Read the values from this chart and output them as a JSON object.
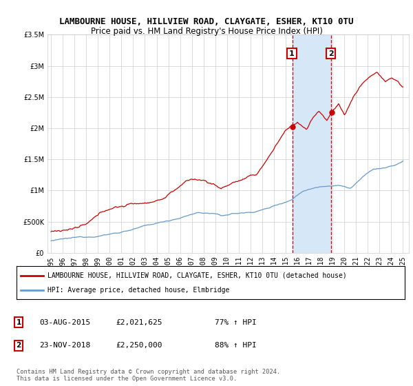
{
  "title": "LAMBOURNE HOUSE, HILLVIEW ROAD, CLAYGATE, ESHER, KT10 0TU",
  "subtitle": "Price paid vs. HM Land Registry's House Price Index (HPI)",
  "legend_line1": "LAMBOURNE HOUSE, HILLVIEW ROAD, CLAYGATE, ESHER, KT10 0TU (detached house)",
  "legend_line2": "HPI: Average price, detached house, Elmbridge",
  "sale1_date": "03-AUG-2015",
  "sale1_price": 2021625,
  "sale1_hpi_pct": "77% ↑ HPI",
  "sale2_date": "23-NOV-2018",
  "sale2_price": 2250000,
  "sale2_hpi_pct": "88% ↑ HPI",
  "footnote": "Contains HM Land Registry data © Crown copyright and database right 2024.\nThis data is licensed under the Open Government Licence v3.0.",
  "red_color": "#cc0000",
  "blue_color": "#6699cc",
  "shade_color": "#d6e8f7",
  "ylim_max": 3500000,
  "xlim_start": 1994.7,
  "xlim_end": 2025.5,
  "sale1_x": 2015.58,
  "sale2_x": 2018.9,
  "title_fontsize": 9,
  "subtitle_fontsize": 8.5,
  "tick_fontsize": 7,
  "legend_fontsize": 7,
  "table_fontsize": 8
}
